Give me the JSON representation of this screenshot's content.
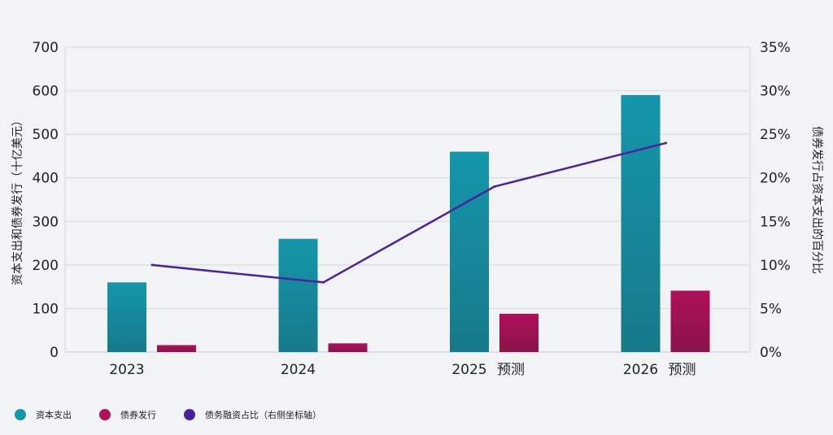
{
  "chart_data": {
    "type": "bar",
    "categories": [
      "2023",
      "2024",
      "2025",
      "2026"
    ],
    "category_suffixes": [
      "",
      "",
      "预测",
      "预测"
    ],
    "series": [
      {
        "name": "资本支出",
        "kind": "bar",
        "axis": "left",
        "color": "#1596aa",
        "color_dark": "#167a8a",
        "values": [
          160,
          260,
          460,
          590
        ]
      },
      {
        "name": "债券发行",
        "kind": "bar",
        "axis": "left",
        "color": "#b0105a",
        "color_dark": "#8a1348",
        "values": [
          16,
          20,
          88,
          141
        ]
      },
      {
        "name": "债务融资占比（右侧坐标轴）",
        "kind": "line",
        "axis": "right",
        "color": "#4a22a0",
        "values": [
          10,
          8,
          19,
          24
        ]
      }
    ],
    "y_left": {
      "label": "资本支出和债券发行（十亿美元）",
      "min": 0,
      "max": 700,
      "ticks": [
        "0",
        "100",
        "200",
        "300",
        "400",
        "500",
        "600",
        "700"
      ]
    },
    "y_right": {
      "label": "债券发行占资本支出的百分比",
      "min": 0,
      "max": 35,
      "ticks": [
        "0%",
        "5%",
        "10%",
        "15%",
        "20%",
        "25%",
        "30%",
        "35%"
      ]
    },
    "grid": true,
    "legend_position": "bottom-left"
  },
  "legend": {
    "items": [
      {
        "label": "资本支出",
        "color": "#1596aa"
      },
      {
        "label": "债券发行",
        "color": "#b0105a"
      },
      {
        "label": "债务融资占比（右侧坐标轴）",
        "color": "#4a22a0"
      }
    ]
  }
}
